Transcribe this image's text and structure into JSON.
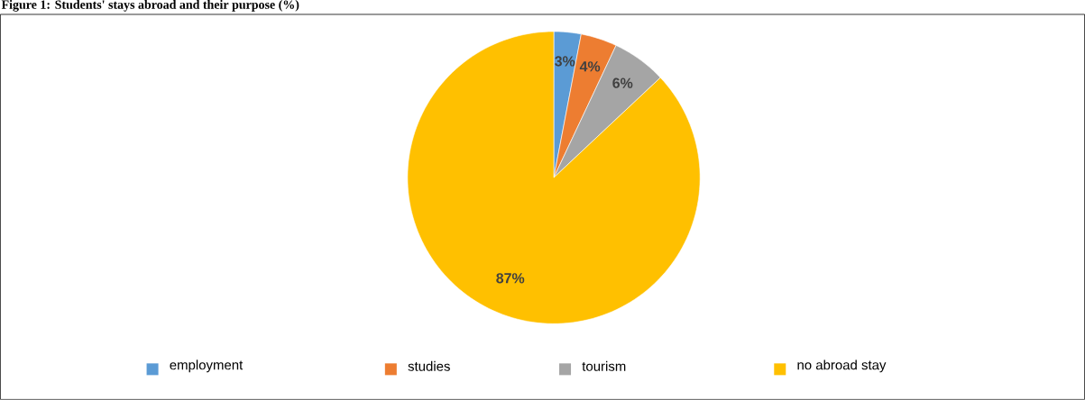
{
  "chart_data": {
    "type": "pie",
    "title": "Figure 1: Students' stays abroad and their purpose (%)",
    "categories": [
      "employment",
      "studies",
      "tourism",
      "no abroad stay"
    ],
    "values": [
      3,
      4,
      6,
      87
    ],
    "colors": [
      "#5b9bd5",
      "#ed7d31",
      "#a5a5a5",
      "#ffc000"
    ],
    "value_labels": [
      "3%",
      "4%",
      "6%",
      "87%"
    ],
    "legend": "bottom"
  }
}
